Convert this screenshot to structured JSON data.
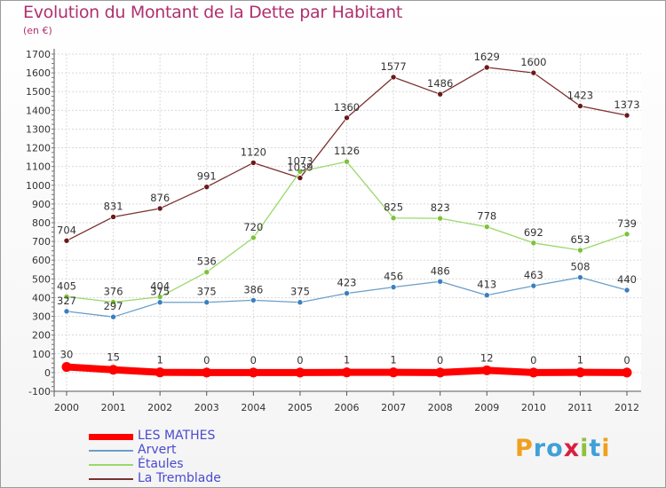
{
  "title": "Evolution du Montant de la Dette par Habitant",
  "unit": "(en €)",
  "logo": {
    "text": "Proxiti",
    "letters": [
      "P",
      "r",
      "o",
      "x",
      "i",
      "t",
      "i"
    ]
  },
  "chart_data": {
    "type": "line",
    "ylim": [
      -100,
      1700
    ],
    "yticks": [
      -100,
      0,
      100,
      200,
      300,
      400,
      500,
      600,
      700,
      800,
      900,
      1000,
      1100,
      1200,
      1300,
      1400,
      1500,
      1600,
      1700
    ],
    "ytick_labels": [
      "-100",
      "0",
      "100",
      "200",
      "300",
      "400",
      "500",
      "600",
      "700",
      "800",
      "900",
      "1000",
      "1100",
      "1200",
      "1300",
      "1400",
      "1500",
      "1600",
      "1700"
    ],
    "grid": true,
    "legend_position": "bottom-left",
    "categories": [
      "2000",
      "2001",
      "2002",
      "2003",
      "2004",
      "2005",
      "2006",
      "2007",
      "2008",
      "2009",
      "2010",
      "2011",
      "2012"
    ],
    "series": [
      {
        "name": "LES MATHES",
        "color": "#ff0000",
        "dot": "#ff0000",
        "values": [
          30,
          15,
          1,
          0,
          0,
          0,
          1,
          1,
          0,
          12,
          0,
          1,
          0
        ],
        "labels": [
          "30",
          "15",
          "1",
          "0",
          "0",
          "0",
          "1",
          "1",
          "0",
          "12",
          "0",
          "1",
          "0"
        ]
      },
      {
        "name": "Arvert",
        "color": "#6b9ec9",
        "dot": "#3a7fc0",
        "values": [
          327,
          297,
          375,
          375,
          386,
          375,
          423,
          456,
          486,
          413,
          463,
          508,
          440
        ],
        "labels": [
          "327",
          "297",
          "375",
          "375",
          "386",
          "375",
          "423",
          "456",
          "486",
          "413",
          "463",
          "508",
          "440"
        ]
      },
      {
        "name": "Étaules",
        "color": "#9ad86a",
        "dot": "#7cc23a",
        "values": [
          405,
          376,
          404,
          536,
          720,
          1073,
          1126,
          825,
          823,
          778,
          692,
          653,
          739
        ],
        "labels": [
          "405",
          "376",
          "404",
          "536",
          "720",
          "1073",
          "1126",
          "825",
          "823",
          "778",
          "692",
          "653",
          "739"
        ]
      },
      {
        "name": "La Tremblade",
        "color": "#7d3030",
        "dot": "#6a1a1a",
        "values": [
          704,
          831,
          876,
          991,
          1120,
          1039,
          1360,
          1577,
          1486,
          1629,
          1600,
          1423,
          1373
        ],
        "labels": [
          "704",
          "831",
          "876",
          "991",
          "1120",
          "1039",
          "1360",
          "1577",
          "1486",
          "1629",
          "1600",
          "1423",
          "1373"
        ]
      }
    ]
  }
}
